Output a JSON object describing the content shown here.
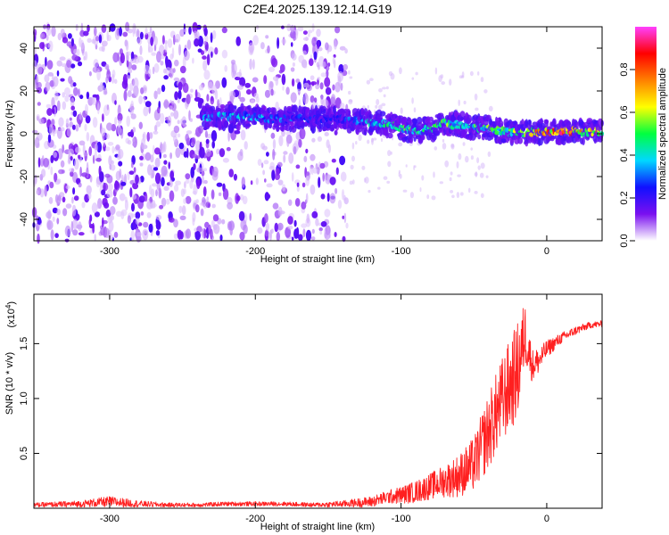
{
  "figure": {
    "title": "C2E4.2025.139.12.14.G19"
  },
  "chart_data": [
    {
      "type": "heatmap",
      "xlabel": "Height of straight line (km)",
      "ylabel": "Frequency (Hz)",
      "xlim": [
        -352,
        38
      ],
      "ylim": [
        -50,
        50
      ],
      "xticks": [
        -300,
        -200,
        -100,
        0
      ],
      "yticks": [
        -40,
        -20,
        0,
        20,
        40
      ],
      "grid": false,
      "ridge": {
        "x": [
          -235,
          -220,
          -205,
          -190,
          -175,
          -160,
          -145,
          -130,
          -115,
          -100,
          -90,
          -80,
          -70,
          -60,
          -50,
          -40,
          -30,
          -20,
          -10,
          0,
          10,
          20,
          35
        ],
        "frequency": [
          8,
          8,
          8,
          7,
          7,
          7,
          7,
          6,
          5,
          3,
          1,
          2,
          5,
          4,
          3,
          3,
          1,
          0,
          1,
          1,
          1,
          1,
          1
        ],
        "normalized_amplitude": [
          0.35,
          0.4,
          0.38,
          0.35,
          0.3,
          0.25,
          0.25,
          0.35,
          0.45,
          0.5,
          0.5,
          0.45,
          0.6,
          0.45,
          0.5,
          0.55,
          0.5,
          0.6,
          0.7,
          0.8,
          0.9,
          0.8,
          0.7
        ]
      },
      "colorbar": {
        "label": "Normalized spectral amplitude",
        "range": [
          0,
          1
        ],
        "ticks": [
          0.0,
          0.2,
          0.4,
          0.6,
          0.8
        ],
        "tick_labels": [
          "0.0",
          "0.2",
          "0.4",
          "0.6",
          "0.8"
        ],
        "colors": [
          "#ffffff",
          "#7a10f0",
          "#1010ff",
          "#00d8ff",
          "#00ff40",
          "#ffff00",
          "#ff8000",
          "#ff0000",
          "#ff40ff"
        ]
      }
    },
    {
      "type": "line",
      "xlabel": "Height of straight line (km)",
      "ylabel": "SNR (10 * v/v)",
      "y_multiplier": "(x10",
      "y_multiplier_exp": "4",
      "y_multiplier_close": ")",
      "xlim": [
        -352,
        38
      ],
      "ylim": [
        0,
        1.95
      ],
      "xticks": [
        -300,
        -200,
        -100,
        0
      ],
      "yticks": [
        0.5,
        1.0,
        1.5
      ],
      "ytick_labels": [
        "0.5",
        "1.0",
        "1.5"
      ],
      "grid": false,
      "series": [
        {
          "color": "#ff2020",
          "x": [
            -352,
            -320,
            -300,
            -280,
            -260,
            -240,
            -220,
            -200,
            -180,
            -160,
            -140,
            -120,
            -110,
            -100,
            -90,
            -80,
            -70,
            -60,
            -50,
            -40,
            -30,
            -20,
            -15,
            -10,
            -5,
            0,
            10,
            20,
            30,
            38
          ],
          "y": [
            0.03,
            0.04,
            0.06,
            0.04,
            0.03,
            0.03,
            0.04,
            0.04,
            0.04,
            0.03,
            0.04,
            0.06,
            0.1,
            0.12,
            0.15,
            0.2,
            0.25,
            0.3,
            0.4,
            0.7,
            1.0,
            1.25,
            1.6,
            1.3,
            1.35,
            1.45,
            1.55,
            1.62,
            1.67,
            1.68
          ],
          "noise_amplitude": [
            0.02,
            0.03,
            0.05,
            0.03,
            0.02,
            0.02,
            0.02,
            0.02,
            0.02,
            0.02,
            0.03,
            0.05,
            0.06,
            0.08,
            0.1,
            0.12,
            0.15,
            0.2,
            0.25,
            0.35,
            0.4,
            0.45,
            0.3,
            0.15,
            0.12,
            0.08,
            0.05,
            0.04,
            0.03,
            0.03
          ]
        }
      ]
    }
  ]
}
